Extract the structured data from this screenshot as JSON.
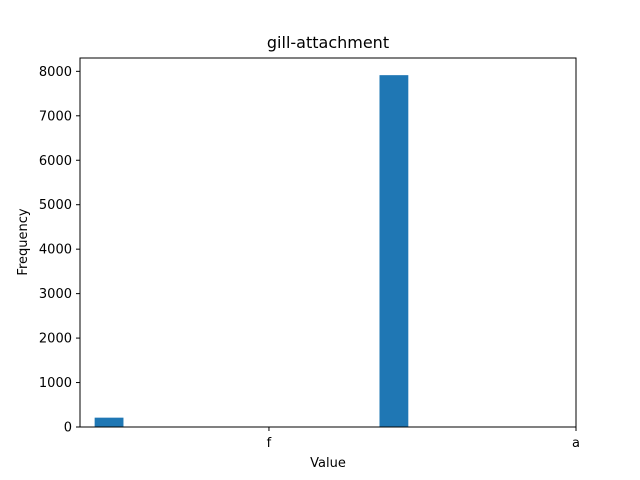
{
  "chart_data": {
    "type": "bar",
    "title": "gill-attachment",
    "xlabel": "Value",
    "ylabel": "Frequency",
    "x_range": [
      -0.05,
      1.0
    ],
    "ylim": [
      0,
      8300
    ],
    "y_ticks": [
      0,
      1000,
      2000,
      3000,
      4000,
      5000,
      6000,
      7000,
      8000
    ],
    "x_ticks": [
      {
        "label": "f",
        "value": 0.35
      },
      {
        "label": "a",
        "value": 1.0
      }
    ],
    "bars": [
      {
        "x0": -0.019,
        "x1": 0.042,
        "value": 210
      },
      {
        "x0": 0.584,
        "x1": 0.645,
        "value": 7914
      }
    ],
    "color": "#1f77b4",
    "grid": false,
    "legend": false
  }
}
